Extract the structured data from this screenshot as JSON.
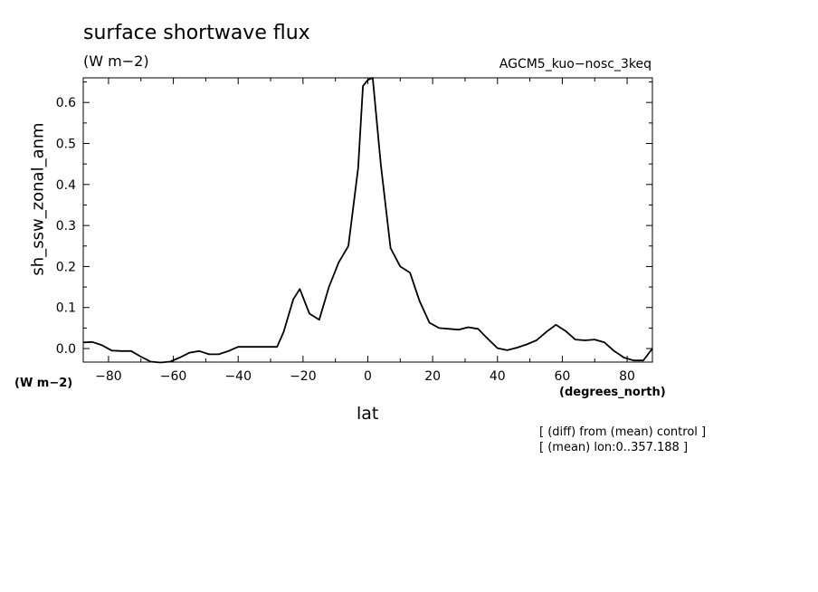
{
  "chart_data": {
    "type": "line",
    "title": "surface shortwave flux",
    "units": "(W m−2)",
    "dataset": "AGCM5_kuo−nosc_3keq",
    "ylabel": "sh_ssw_zonal_anm",
    "yunits": "(W m−2)",
    "xlabel": "lat",
    "xunits": "(degrees_north)",
    "notes": [
      "[ (diff) from (mean) control ]",
      "[ (mean) lon:0..357.188 ]"
    ],
    "xlim": [
      -87.8,
      87.8
    ],
    "ylim": [
      -0.033,
      0.66
    ],
    "xticks": [
      -80,
      -60,
      -40,
      -20,
      0,
      20,
      40,
      60,
      80
    ],
    "xtick_labels": [
      "−80",
      "−60",
      "−40",
      "−20",
      "0",
      "20",
      "40",
      "60",
      "80"
    ],
    "yticks": [
      0.0,
      0.1,
      0.2,
      0.3,
      0.4,
      0.5,
      0.6
    ],
    "ytick_labels": [
      "0.0",
      "0.1",
      "0.2",
      "0.3",
      "0.4",
      "0.5",
      "0.6"
    ],
    "grid": false,
    "series": [
      {
        "x": [
          -87.8,
          -85,
          -82,
          -79,
          -76,
          -73,
          -70,
          -67,
          -64,
          -61,
          -58,
          -55,
          -52,
          -49,
          -46,
          -43,
          -40,
          -37,
          -34,
          -31,
          -28,
          -26,
          -23,
          -21,
          -18,
          -15,
          -12,
          -9,
          -6,
          -3,
          -1.5,
          0,
          1.5,
          4,
          7,
          10,
          13,
          16,
          19,
          22,
          25,
          28,
          31,
          34,
          37,
          40,
          43,
          46,
          49,
          52,
          55,
          58,
          61,
          64,
          67,
          70,
          73,
          76,
          79,
          82,
          85,
          87.8
        ],
        "y": [
          0.015,
          0.016,
          0.008,
          -0.005,
          -0.006,
          -0.006,
          -0.02,
          -0.032,
          -0.034,
          -0.032,
          -0.022,
          -0.01,
          -0.006,
          -0.014,
          -0.014,
          -0.006,
          0.004,
          0.004,
          0.004,
          0.004,
          0.004,
          0.04,
          0.12,
          0.145,
          0.085,
          0.07,
          0.15,
          0.21,
          0.25,
          0.44,
          0.64,
          0.655,
          0.66,
          0.45,
          0.245,
          0.2,
          0.185,
          0.115,
          0.063,
          0.05,
          0.048,
          0.046,
          0.052,
          0.048,
          0.024,
          0.001,
          -0.004,
          0.002,
          0.01,
          0.02,
          0.04,
          0.058,
          0.043,
          0.022,
          0.02,
          0.022,
          0.015,
          -0.006,
          -0.022,
          -0.029,
          -0.029,
          0.0
        ]
      }
    ]
  }
}
